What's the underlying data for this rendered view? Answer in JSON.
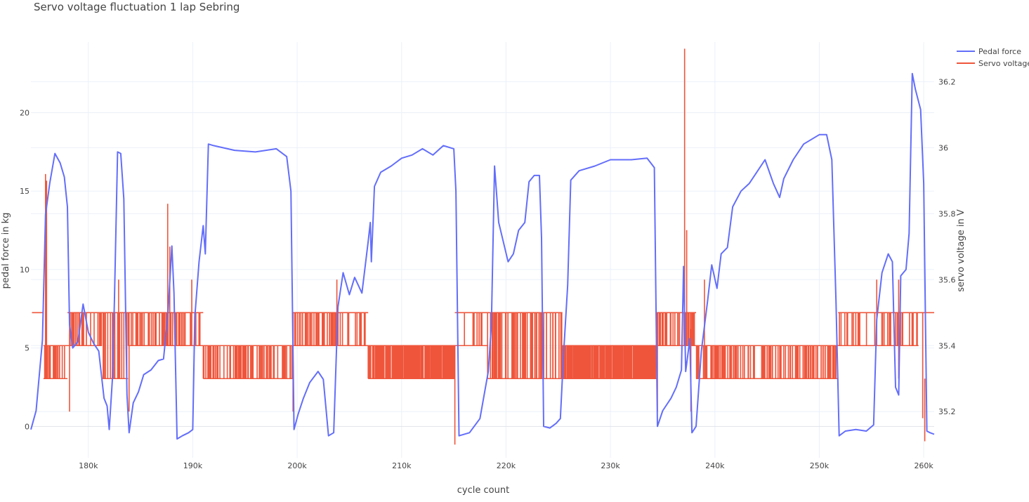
{
  "chart_data": {
    "type": "line",
    "title": "Servo voltage fluctuation 1 lap Sebring",
    "xlabel": "cycle count",
    "ylabel_left": "pedal force in kg",
    "ylabel_right": "servo voltage in V",
    "xlim": [
      174500,
      261000
    ],
    "ylim_left": [
      -2,
      24.5
    ],
    "ylim_right": [
      35.06,
      36.32
    ],
    "x_ticks": [
      180000,
      190000,
      200000,
      210000,
      220000,
      230000,
      240000,
      250000,
      260000
    ],
    "x_tick_labels": [
      "180k",
      "190k",
      "200k",
      "210k",
      "220k",
      "230k",
      "240k",
      "250k",
      "260k"
    ],
    "y_left_ticks": [
      0,
      5,
      10,
      15,
      20
    ],
    "y_right_ticks": [
      35.2,
      35.4,
      35.6,
      35.8,
      36,
      36.2
    ],
    "grid": true,
    "legend_position": "top-right",
    "series": [
      {
        "name": "Pedal force",
        "axis": "left",
        "color": "#636efa",
        "points": [
          [
            174500,
            -0.2
          ],
          [
            175000,
            1.0
          ],
          [
            175600,
            5.5
          ],
          [
            175900,
            13.5
          ],
          [
            176300,
            15.5
          ],
          [
            176800,
            17.4
          ],
          [
            177300,
            16.8
          ],
          [
            177700,
            15.9
          ],
          [
            178000,
            14.0
          ],
          [
            178200,
            6.5
          ],
          [
            178500,
            5.0
          ],
          [
            179000,
            5.4
          ],
          [
            179500,
            7.8
          ],
          [
            180000,
            6.0
          ],
          [
            180500,
            5.3
          ],
          [
            181000,
            4.8
          ],
          [
            181500,
            1.8
          ],
          [
            181800,
            1.3
          ],
          [
            182000,
            -0.2
          ],
          [
            182300,
            3.0
          ],
          [
            182500,
            8.0
          ],
          [
            182800,
            17.5
          ],
          [
            183100,
            17.4
          ],
          [
            183400,
            14.5
          ],
          [
            183700,
            2.0
          ],
          [
            183900,
            -0.4
          ],
          [
            184300,
            1.5
          ],
          [
            184800,
            2.2
          ],
          [
            185300,
            3.3
          ],
          [
            186000,
            3.6
          ],
          [
            186700,
            4.2
          ],
          [
            187200,
            4.3
          ],
          [
            187600,
            7.0
          ],
          [
            188000,
            11.5
          ],
          [
            188200,
            8.5
          ],
          [
            188500,
            -0.8
          ],
          [
            189000,
            -0.6
          ],
          [
            189600,
            -0.4
          ],
          [
            190000,
            -0.2
          ],
          [
            190200,
            7.0
          ],
          [
            190600,
            10.5
          ],
          [
            191000,
            12.8
          ],
          [
            191200,
            11.0
          ],
          [
            191500,
            18.0
          ],
          [
            192000,
            17.9
          ],
          [
            194000,
            17.6
          ],
          [
            196000,
            17.5
          ],
          [
            198000,
            17.7
          ],
          [
            199000,
            17.2
          ],
          [
            199400,
            15.0
          ],
          [
            199700,
            -0.2
          ],
          [
            200100,
            0.8
          ],
          [
            200600,
            1.8
          ],
          [
            201200,
            2.8
          ],
          [
            202000,
            3.5
          ],
          [
            202500,
            3.0
          ],
          [
            203000,
            -0.6
          ],
          [
            203500,
            -0.4
          ],
          [
            203900,
            7.6
          ],
          [
            204400,
            9.8
          ],
          [
            205000,
            8.4
          ],
          [
            205500,
            9.5
          ],
          [
            206200,
            8.5
          ],
          [
            206800,
            11.8
          ],
          [
            207000,
            13.0
          ],
          [
            207100,
            10.5
          ],
          [
            207400,
            15.3
          ],
          [
            208000,
            16.2
          ],
          [
            209000,
            16.6
          ],
          [
            210000,
            17.1
          ],
          [
            211000,
            17.3
          ],
          [
            212000,
            17.7
          ],
          [
            213000,
            17.3
          ],
          [
            214000,
            17.9
          ],
          [
            215000,
            17.7
          ],
          [
            215200,
            15.0
          ],
          [
            215500,
            -0.6
          ],
          [
            216500,
            -0.4
          ],
          [
            217500,
            0.5
          ],
          [
            218300,
            3.5
          ],
          [
            218600,
            6.5
          ],
          [
            218900,
            16.6
          ],
          [
            219300,
            13.0
          ],
          [
            219800,
            11.6
          ],
          [
            220200,
            10.5
          ],
          [
            220700,
            11.0
          ],
          [
            221200,
            12.5
          ],
          [
            221800,
            13.0
          ],
          [
            222200,
            15.6
          ],
          [
            222700,
            16.0
          ],
          [
            223200,
            16.0
          ],
          [
            223400,
            12.0
          ],
          [
            223600,
            0.0
          ],
          [
            224200,
            -0.1
          ],
          [
            224800,
            0.2
          ],
          [
            225200,
            0.5
          ],
          [
            225500,
            4.5
          ],
          [
            225900,
            9.0
          ],
          [
            226200,
            15.7
          ],
          [
            227000,
            16.3
          ],
          [
            228500,
            16.6
          ],
          [
            230000,
            17.0
          ],
          [
            232000,
            17.0
          ],
          [
            233500,
            17.1
          ],
          [
            234200,
            16.5
          ],
          [
            234500,
            0.0
          ],
          [
            235000,
            1.0
          ],
          [
            235800,
            1.8
          ],
          [
            236300,
            2.5
          ],
          [
            236800,
            3.6
          ],
          [
            237000,
            10.2
          ],
          [
            237200,
            3.5
          ],
          [
            237400,
            4.5
          ],
          [
            237600,
            5.6
          ],
          [
            237800,
            -0.4
          ],
          [
            238200,
            0.0
          ],
          [
            238700,
            4.8
          ],
          [
            239300,
            8.0
          ],
          [
            239700,
            10.3
          ],
          [
            240200,
            8.8
          ],
          [
            240600,
            11.0
          ],
          [
            241200,
            11.4
          ],
          [
            241700,
            14.0
          ],
          [
            242500,
            15.0
          ],
          [
            243300,
            15.5
          ],
          [
            244000,
            16.2
          ],
          [
            244800,
            17.0
          ],
          [
            245600,
            15.5
          ],
          [
            246200,
            14.6
          ],
          [
            246600,
            15.8
          ],
          [
            247500,
            17.0
          ],
          [
            248500,
            18.0
          ],
          [
            250000,
            18.6
          ],
          [
            250700,
            18.6
          ],
          [
            251200,
            17.0
          ],
          [
            251600,
            8.0
          ],
          [
            251900,
            -0.6
          ],
          [
            252500,
            -0.3
          ],
          [
            253500,
            -0.2
          ],
          [
            254500,
            -0.3
          ],
          [
            255200,
            0.1
          ],
          [
            255500,
            6.8
          ],
          [
            256000,
            9.8
          ],
          [
            256600,
            11.0
          ],
          [
            257000,
            10.5
          ],
          [
            257300,
            2.5
          ],
          [
            257600,
            2.0
          ],
          [
            257800,
            9.6
          ],
          [
            258300,
            10.0
          ],
          [
            258600,
            12.3
          ],
          [
            258900,
            22.5
          ],
          [
            259200,
            21.5
          ],
          [
            259700,
            20.2
          ],
          [
            260000,
            15.5
          ],
          [
            260300,
            -0.3
          ],
          [
            260600,
            -0.4
          ],
          [
            261000,
            -0.5
          ]
        ]
      },
      {
        "name": "Servo voltage",
        "axis": "right",
        "color": "#ef553b",
        "levels": [
          35.3,
          35.4,
          35.5
        ],
        "segments": [
          {
            "x0": 174600,
            "x1": 175700,
            "band": [
              35.5,
              35.5
            ],
            "lines": 6
          },
          {
            "x0": 175700,
            "x1": 178000,
            "band": [
              35.3,
              35.4
            ],
            "lines": 22
          },
          {
            "x0": 178000,
            "x1": 181300,
            "band": [
              35.4,
              35.5
            ],
            "lines": 26
          },
          {
            "x0": 181300,
            "x1": 183800,
            "band": [
              35.3,
              35.5
            ],
            "lines": 20
          },
          {
            "x0": 183800,
            "x1": 187300,
            "band": [
              35.4,
              35.5
            ],
            "lines": 28
          },
          {
            "x0": 187300,
            "x1": 188600,
            "band": [
              35.4,
              35.5
            ],
            "lines": 10
          },
          {
            "x0": 188600,
            "x1": 191000,
            "band": [
              35.4,
              35.5
            ],
            "lines": 18
          },
          {
            "x0": 191000,
            "x1": 199600,
            "band": [
              35.3,
              35.4
            ],
            "lines": 75
          },
          {
            "x0": 199600,
            "x1": 206800,
            "band": [
              35.4,
              35.5
            ],
            "lines": 55
          },
          {
            "x0": 206800,
            "x1": 215100,
            "band": [
              35.3,
              35.4
            ],
            "lines": 260
          },
          {
            "x0": 215100,
            "x1": 218200,
            "band": [
              35.4,
              35.5
            ],
            "lines": 10
          },
          {
            "x0": 218200,
            "x1": 225400,
            "band": [
              35.3,
              35.5
            ],
            "lines": 60
          },
          {
            "x0": 225400,
            "x1": 234400,
            "band": [
              35.3,
              35.4
            ],
            "lines": 280
          },
          {
            "x0": 234400,
            "x1": 238200,
            "band": [
              35.4,
              35.5
            ],
            "lines": 40
          },
          {
            "x0": 238200,
            "x1": 251800,
            "band": [
              35.3,
              35.4
            ],
            "lines": 140
          },
          {
            "x0": 251800,
            "x1": 259500,
            "band": [
              35.4,
              35.5
            ],
            "lines": 40
          },
          {
            "x0": 259500,
            "x1": 261000,
            "band": [
              35.5,
              35.5
            ],
            "lines": 6
          }
        ],
        "spikes": [
          {
            "x": 175900,
            "top": 35.92,
            "bottom": 35.3
          },
          {
            "x": 176000,
            "top": 35.9,
            "bottom": 35.4
          },
          {
            "x": 178200,
            "top": 35.5,
            "bottom": 35.2
          },
          {
            "x": 182900,
            "top": 35.6,
            "bottom": 35.4
          },
          {
            "x": 183900,
            "top": 35.5,
            "bottom": 35.2
          },
          {
            "x": 187600,
            "top": 35.83,
            "bottom": 35.4
          },
          {
            "x": 187800,
            "top": 35.7,
            "bottom": 35.4
          },
          {
            "x": 189900,
            "top": 35.6,
            "bottom": 35.4
          },
          {
            "x": 199600,
            "top": 35.5,
            "bottom": 35.2
          },
          {
            "x": 203800,
            "top": 35.6,
            "bottom": 35.4
          },
          {
            "x": 215100,
            "top": 35.4,
            "bottom": 35.1
          },
          {
            "x": 234500,
            "top": 35.4,
            "bottom": 35.2
          },
          {
            "x": 237100,
            "top": 36.3,
            "bottom": 35.4
          },
          {
            "x": 237300,
            "top": 35.75,
            "bottom": 35.4
          },
          {
            "x": 237700,
            "top": 35.45,
            "bottom": 35.2
          },
          {
            "x": 239000,
            "top": 35.6,
            "bottom": 35.4
          },
          {
            "x": 255500,
            "top": 35.6,
            "bottom": 35.4
          },
          {
            "x": 257600,
            "top": 35.6,
            "bottom": 35.3
          },
          {
            "x": 259900,
            "top": 35.5,
            "bottom": 35.18
          },
          {
            "x": 260100,
            "top": 35.3,
            "bottom": 35.11
          }
        ]
      }
    ]
  }
}
